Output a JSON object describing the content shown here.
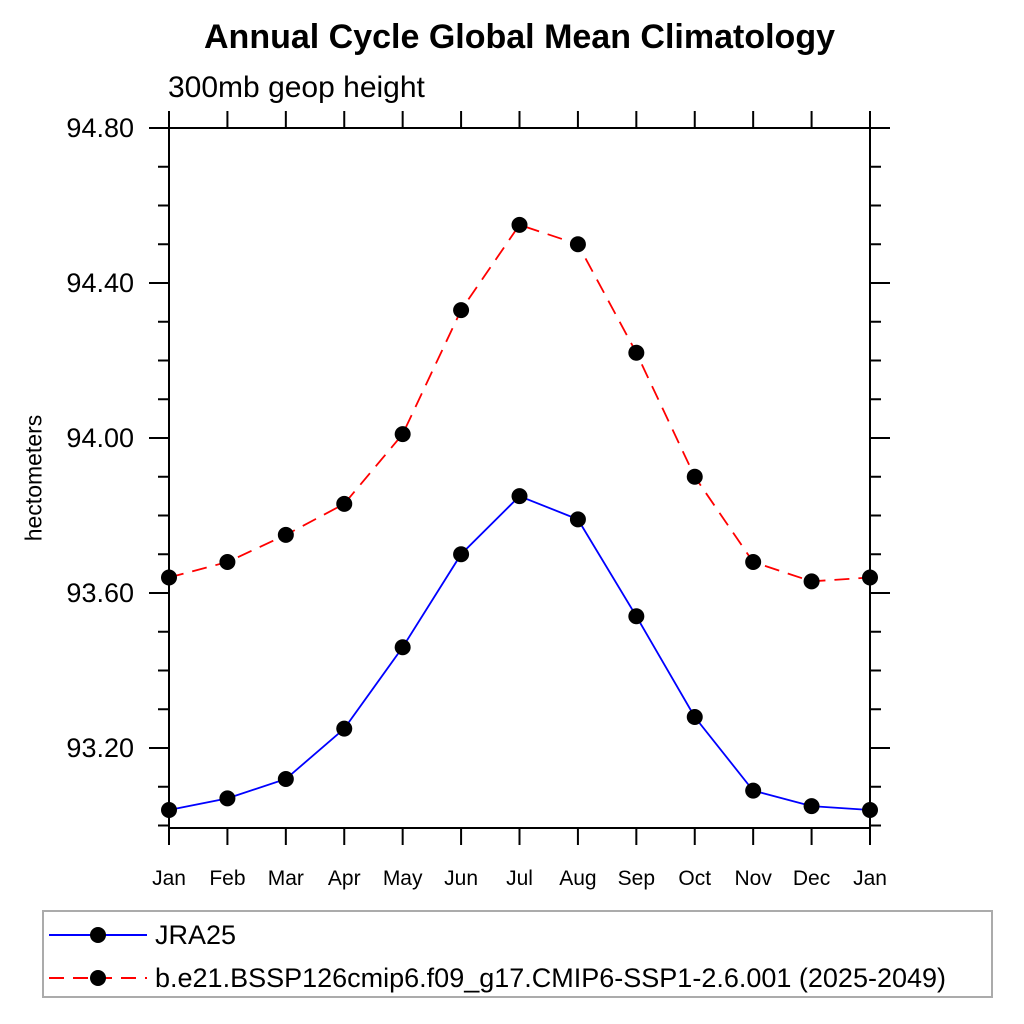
{
  "chart_data": {
    "type": "line",
    "title": "Annual Cycle Global Mean Climatology",
    "subtitle": "300mb geop height",
    "ylabel": "hectometers",
    "xlabel": "",
    "categories": [
      "Jan",
      "Feb",
      "Mar",
      "Apr",
      "May",
      "Jun",
      "Jul",
      "Aug",
      "Sep",
      "Oct",
      "Nov",
      "Dec",
      "Jan"
    ],
    "series": [
      {
        "name": "JRA25",
        "color": "#0000ff",
        "line_style": "solid",
        "marker": "filled-circle",
        "marker_color": "#000000",
        "values": [
          93.04,
          93.07,
          93.12,
          93.25,
          93.46,
          93.7,
          93.85,
          93.79,
          93.54,
          93.28,
          93.09,
          93.05,
          93.04
        ]
      },
      {
        "name": "b.e21.BSSP126cmip6.f09_g17.CMIP6-SSP1-2.6.001 (2025-2049)",
        "color": "#ff0000",
        "line_style": "dashed",
        "marker": "filled-circle",
        "marker_color": "#000000",
        "values": [
          93.64,
          93.68,
          93.75,
          93.83,
          94.01,
          94.33,
          94.55,
          94.5,
          94.22,
          93.9,
          93.68,
          93.63,
          93.64
        ]
      }
    ],
    "y_axis": {
      "major_ticks": [
        {
          "value": 94.8,
          "label": "94.80"
        },
        {
          "value": 94.4,
          "label": "94.40"
        },
        {
          "value": 94.0,
          "label": "94.00"
        },
        {
          "value": 93.6,
          "label": "93.60"
        },
        {
          "value": 93.2,
          "label": "93.20"
        }
      ],
      "minor_step": 0.1,
      "ylim": [
        92.99,
        94.8
      ]
    },
    "grid": false,
    "legend_position": "bottom",
    "axis_color": "#000000",
    "legend_border_color": "#ababab"
  }
}
